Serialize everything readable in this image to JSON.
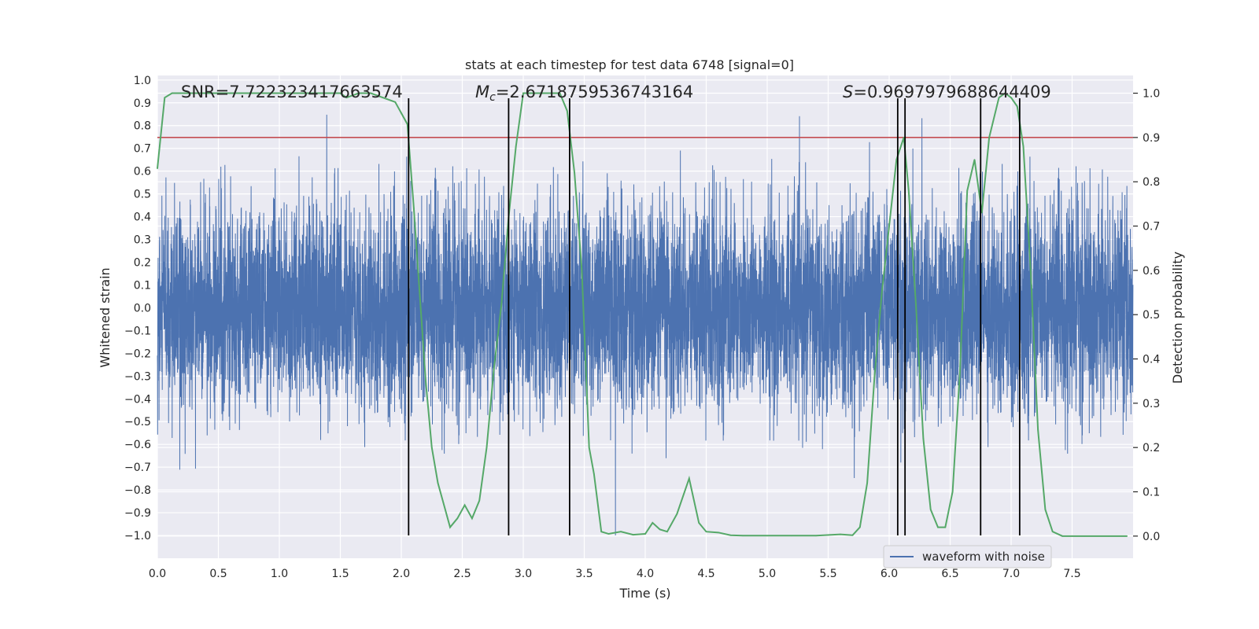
{
  "chart_data": {
    "type": "line",
    "title": "stats at each timestep for test data 6748 [signal=0]",
    "xlabel": "Time (s)",
    "ylabel": "Whitened strain",
    "y2label": "Detection probability",
    "xlim": [
      0.0,
      8.0
    ],
    "ylim": [
      -1.1,
      1.02
    ],
    "y2lim": [
      -0.05,
      1.04
    ],
    "xticks": [
      "0.0",
      "0.5",
      "1.0",
      "1.5",
      "2.0",
      "2.5",
      "3.0",
      "3.5",
      "4.0",
      "4.5",
      "5.0",
      "5.5",
      "6.0",
      "6.5",
      "7.0",
      "7.5"
    ],
    "yticks": [
      "1.0",
      "0.9",
      "0.8",
      "0.7",
      "0.6",
      "0.5",
      "0.4",
      "0.3",
      "0.2",
      "0.1",
      "0.0",
      "−0.1",
      "−0.2",
      "−0.3",
      "−0.4",
      "−0.5",
      "−0.6",
      "−0.7",
      "−0.8",
      "−0.9",
      "−1.0"
    ],
    "y2ticks": [
      "1.0",
      "0.9",
      "0.8",
      "0.7",
      "0.6",
      "0.5",
      "0.4",
      "0.3",
      "0.2",
      "0.1",
      "0.0"
    ],
    "annotations": {
      "snr": "SNR=7.722323417663574",
      "mc_symbol": "M",
      "mc_sub": "c",
      "mc_value": "=2.6718759536743164",
      "s_symbol": "S",
      "s_value": "=0.9697979688644409"
    },
    "threshold": {
      "name": "threshold",
      "value": 0.9,
      "axis": "right",
      "color": "#c44e52"
    },
    "vlines_x": [
      2.06,
      2.88,
      3.38,
      6.07,
      6.13,
      6.75,
      7.07
    ],
    "vline_range": [
      -1.0,
      0.92
    ],
    "series": [
      {
        "name": "waveform with noise",
        "axis": "left",
        "color": "#4c72b0",
        "kind": "noise",
        "samples": 8192,
        "envelope": 0.4,
        "peak_max": 0.92,
        "peak_min": -1.0
      },
      {
        "name": "detection probability",
        "axis": "right",
        "color": "#55a868",
        "x": [
          0.0,
          0.06,
          0.12,
          0.2,
          0.3,
          0.5,
          0.7,
          1.0,
          1.3,
          1.5,
          1.55,
          1.65,
          1.75,
          1.85,
          1.95,
          2.05,
          2.1,
          2.15,
          2.2,
          2.25,
          2.3,
          2.36,
          2.4,
          2.46,
          2.52,
          2.58,
          2.64,
          2.7,
          2.76,
          2.82,
          2.88,
          2.94,
          3.0,
          3.1,
          3.2,
          3.3,
          3.36,
          3.42,
          3.48,
          3.54,
          3.58,
          3.64,
          3.7,
          3.8,
          3.9,
          4.0,
          4.06,
          4.12,
          4.18,
          4.26,
          4.36,
          4.44,
          4.5,
          4.6,
          4.7,
          4.8,
          5.0,
          5.2,
          5.4,
          5.6,
          5.7,
          5.76,
          5.82,
          5.88,
          5.94,
          6.0,
          6.06,
          6.12,
          6.16,
          6.22,
          6.28,
          6.34,
          6.4,
          6.46,
          6.52,
          6.58,
          6.64,
          6.7,
          6.76,
          6.82,
          6.9,
          6.95,
          7.0,
          7.05,
          7.1,
          7.16,
          7.22,
          7.28,
          7.34,
          7.42,
          7.6,
          7.8,
          7.95
        ],
        "values": [
          0.83,
          0.99,
          1.0,
          1.0,
          1.0,
          1.0,
          1.0,
          1.0,
          1.0,
          1.0,
          0.99,
          1.0,
          1.0,
          0.99,
          0.98,
          0.93,
          0.75,
          0.55,
          0.35,
          0.2,
          0.12,
          0.06,
          0.02,
          0.04,
          0.07,
          0.04,
          0.08,
          0.2,
          0.38,
          0.52,
          0.72,
          0.88,
          1.0,
          1.0,
          1.0,
          1.0,
          0.96,
          0.82,
          0.6,
          0.2,
          0.14,
          0.01,
          0.005,
          0.01,
          0.003,
          0.005,
          0.03,
          0.015,
          0.01,
          0.05,
          0.13,
          0.03,
          0.01,
          0.008,
          0.002,
          0.001,
          0.001,
          0.001,
          0.001,
          0.004,
          0.002,
          0.02,
          0.12,
          0.36,
          0.55,
          0.7,
          0.85,
          0.9,
          0.78,
          0.52,
          0.22,
          0.06,
          0.02,
          0.02,
          0.1,
          0.37,
          0.78,
          0.85,
          0.73,
          0.9,
          0.99,
          1.0,
          0.99,
          0.97,
          0.88,
          0.6,
          0.24,
          0.06,
          0.01,
          0.0,
          0.0,
          0.0,
          0.0
        ]
      }
    ],
    "legend": {
      "label": "waveform with noise",
      "placement": "lower-right"
    }
  }
}
